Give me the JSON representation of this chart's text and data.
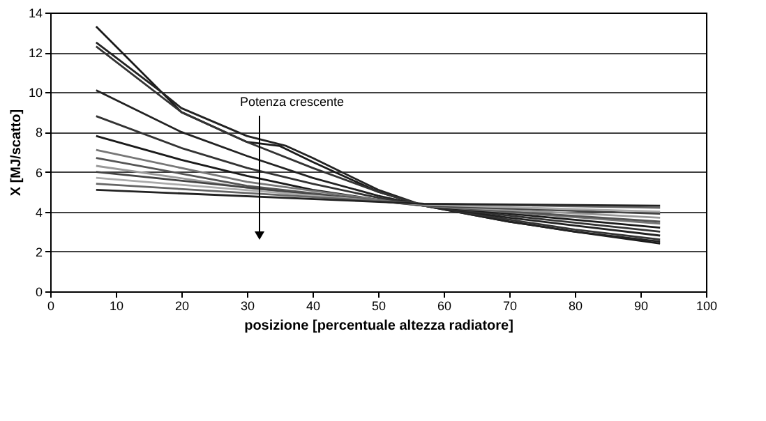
{
  "chart_data": {
    "type": "line",
    "xlabel": "posizione [percentuale altezza radiatore]",
    "ylabel": "X [MJ/scatto]",
    "xlim": [
      0,
      100
    ],
    "xticks": [
      0,
      10,
      20,
      30,
      40,
      50,
      60,
      70,
      80,
      90,
      100
    ],
    "ylim": [
      0,
      14
    ],
    "yticks": [
      0,
      2,
      4,
      6,
      8,
      10,
      12,
      14
    ],
    "grid": "y",
    "legend": false,
    "marker": "none",
    "line_style": "solid",
    "annotations": [
      "Potenza crescente"
    ],
    "series": [
      {
        "color": "#1a1a1a",
        "x": [
          7,
          20,
          30,
          35,
          40,
          50,
          57,
          70,
          80,
          93
        ],
        "values": [
          13.3,
          9.0,
          7.5,
          7.3,
          6.5,
          5.0,
          4.3,
          3.5,
          3.0,
          2.4
        ]
      },
      {
        "color": "#222222",
        "x": [
          7,
          17,
          20,
          30,
          36,
          40,
          50,
          57,
          70,
          80,
          93
        ],
        "values": [
          12.5,
          10.0,
          9.2,
          7.8,
          7.3,
          6.7,
          5.1,
          4.3,
          3.5,
          3.0,
          2.5
        ]
      },
      {
        "color": "#333333",
        "x": [
          7,
          20,
          30,
          40,
          50,
          57,
          70,
          80,
          93
        ],
        "values": [
          12.3,
          9.0,
          7.5,
          6.2,
          5.0,
          4.3,
          3.6,
          3.1,
          2.6
        ]
      },
      {
        "color": "#222222",
        "x": [
          7,
          20,
          30,
          40,
          50,
          57,
          70,
          80,
          93
        ],
        "values": [
          10.1,
          8.0,
          6.8,
          5.7,
          4.8,
          4.3,
          3.7,
          3.3,
          2.8
        ]
      },
      {
        "color": "#333333",
        "x": [
          7,
          20,
          30,
          40,
          50,
          57,
          70,
          93
        ],
        "values": [
          8.8,
          7.2,
          6.2,
          5.4,
          4.7,
          4.3,
          3.8,
          3.0
        ]
      },
      {
        "color": "#1a1a1a",
        "x": [
          7,
          20,
          30,
          40,
          50,
          57,
          70,
          93
        ],
        "values": [
          7.8,
          6.6,
          5.8,
          5.1,
          4.6,
          4.3,
          3.9,
          3.2
        ]
      },
      {
        "color": "#777777",
        "x": [
          7,
          30,
          50,
          57,
          93
        ],
        "values": [
          7.1,
          5.5,
          4.6,
          4.3,
          3.4
        ]
      },
      {
        "color": "#555555",
        "x": [
          7,
          30,
          57,
          93
        ],
        "values": [
          6.7,
          5.3,
          4.3,
          3.5
        ]
      },
      {
        "color": "#999999",
        "x": [
          7,
          30,
          57,
          93
        ],
        "values": [
          6.3,
          5.2,
          4.3,
          3.7
        ]
      },
      {
        "color": "#444444",
        "x": [
          7,
          57,
          93
        ],
        "values": [
          6.0,
          4.3,
          3.9
        ]
      },
      {
        "color": "#aaaaaa",
        "x": [
          7,
          57,
          93
        ],
        "values": [
          5.7,
          4.35,
          4.0
        ]
      },
      {
        "color": "#666666",
        "x": [
          7,
          57,
          93
        ],
        "values": [
          5.4,
          4.4,
          4.2
        ]
      },
      {
        "color": "#222222",
        "x": [
          7,
          57,
          93
        ],
        "values": [
          5.1,
          4.4,
          4.3
        ]
      }
    ]
  }
}
